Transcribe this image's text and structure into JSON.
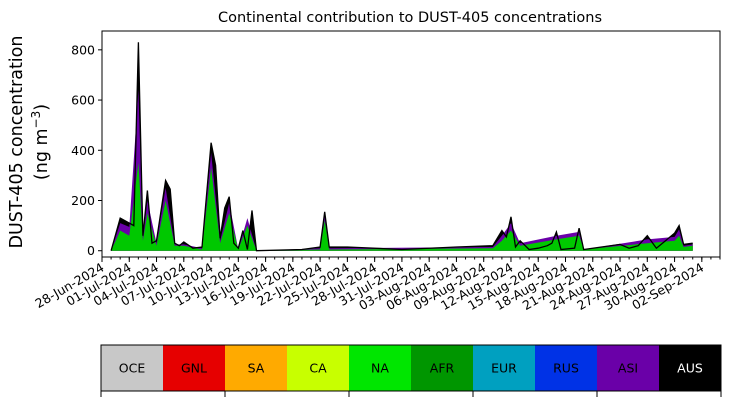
{
  "chart_data": {
    "type": "area",
    "title": "Continental contribution to DUST-405 concentrations",
    "ylabel_line1": "DUST-405 concentration",
    "ylabel_line2_prefix": "(ng m",
    "ylabel_line2_sup": "−3",
    "ylabel_line2_suffix": ")",
    "xlabel": "",
    "ylim": [
      -25,
      875
    ],
    "yticks": [
      0,
      200,
      400,
      600,
      800
    ],
    "x_start": "2024-06-28",
    "x_end": "2024-09-04",
    "xticks": [
      "28-Jun-2024",
      "01-Jul-2024",
      "04-Jul-2024",
      "07-Jul-2024",
      "10-Jul-2024",
      "13-Jul-2024",
      "16-Jul-2024",
      "19-Jul-2024",
      "22-Jul-2024",
      "25-Jul-2024",
      "28-Jul-2024",
      "31-Jul-2024",
      "03-Aug-2024",
      "06-Aug-2024",
      "09-Aug-2024",
      "12-Aug-2024",
      "15-Aug-2024",
      "18-Aug-2024",
      "21-Aug-2024",
      "24-Aug-2024",
      "27-Aug-2024",
      "30-Aug-2024",
      "02-Sep-2024"
    ],
    "grid": false,
    "series_colors": {
      "total": "#000000",
      "asia": "#6a00a8",
      "africa": "#00c800"
    },
    "total_series": [
      [
        "2024-06-29",
        0
      ],
      [
        "2024-06-30",
        130
      ],
      [
        "2024-07-01",
        110
      ],
      [
        "2024-07-01T12",
        100
      ],
      [
        "2024-07-02",
        830
      ],
      [
        "2024-07-02T12",
        60
      ],
      [
        "2024-07-03",
        240
      ],
      [
        "2024-07-03T12",
        30
      ],
      [
        "2024-07-04",
        40
      ],
      [
        "2024-07-05",
        280
      ],
      [
        "2024-07-05T12",
        245
      ],
      [
        "2024-07-06",
        30
      ],
      [
        "2024-07-06T12",
        20
      ],
      [
        "2024-07-07",
        35
      ],
      [
        "2024-07-08",
        10
      ],
      [
        "2024-07-09",
        15
      ],
      [
        "2024-07-10",
        430
      ],
      [
        "2024-07-10T12",
        340
      ],
      [
        "2024-07-11",
        50
      ],
      [
        "2024-07-11T12",
        170
      ],
      [
        "2024-07-12",
        215
      ],
      [
        "2024-07-12T12",
        30
      ],
      [
        "2024-07-13",
        10
      ],
      [
        "2024-07-13T12",
        80
      ],
      [
        "2024-07-14",
        5
      ],
      [
        "2024-07-14T12",
        160
      ],
      [
        "2024-07-15",
        0
      ],
      [
        "2024-07-20",
        5
      ],
      [
        "2024-07-22",
        15
      ],
      [
        "2024-07-22T12",
        155
      ],
      [
        "2024-07-23",
        15
      ],
      [
        "2024-07-25",
        15
      ],
      [
        "2024-07-31",
        5
      ],
      [
        "2024-08-06",
        15
      ],
      [
        "2024-08-10",
        20
      ],
      [
        "2024-08-11",
        80
      ],
      [
        "2024-08-11T12",
        55
      ],
      [
        "2024-08-12",
        135
      ],
      [
        "2024-08-12T12",
        15
      ],
      [
        "2024-08-13",
        40
      ],
      [
        "2024-08-14",
        5
      ],
      [
        "2024-08-15",
        10
      ],
      [
        "2024-08-16",
        20
      ],
      [
        "2024-08-16T12",
        30
      ],
      [
        "2024-08-17",
        75
      ],
      [
        "2024-08-17T12",
        5
      ],
      [
        "2024-08-19",
        10
      ],
      [
        "2024-08-19T12",
        90
      ],
      [
        "2024-08-20",
        5
      ],
      [
        "2024-08-24",
        25
      ],
      [
        "2024-08-25",
        10
      ],
      [
        "2024-08-26",
        20
      ],
      [
        "2024-08-27",
        60
      ],
      [
        "2024-08-28",
        10
      ],
      [
        "2024-08-29",
        40
      ],
      [
        "2024-08-30",
        70
      ],
      [
        "2024-08-30T12",
        100
      ],
      [
        "2024-08-31",
        25
      ],
      [
        "2024-09-01",
        30
      ]
    ],
    "asia_series": [
      [
        "2024-06-29",
        0
      ],
      [
        "2024-06-30",
        110
      ],
      [
        "2024-07-01",
        95
      ],
      [
        "2024-07-02",
        640
      ],
      [
        "2024-07-02T12",
        50
      ],
      [
        "2024-07-03",
        200
      ],
      [
        "2024-07-04",
        30
      ],
      [
        "2024-07-05",
        250
      ],
      [
        "2024-07-06",
        25
      ],
      [
        "2024-07-07",
        25
      ],
      [
        "2024-07-09",
        10
      ],
      [
        "2024-07-10",
        390
      ],
      [
        "2024-07-11",
        40
      ],
      [
        "2024-07-12",
        190
      ],
      [
        "2024-07-13",
        5
      ],
      [
        "2024-07-14",
        130
      ],
      [
        "2024-07-15",
        0
      ],
      [
        "2024-07-22",
        10
      ],
      [
        "2024-07-22T12",
        140
      ],
      [
        "2024-07-23",
        10
      ],
      [
        "2024-08-10",
        15
      ],
      [
        "2024-08-11",
        60
      ],
      [
        "2024-08-12",
        110
      ],
      [
        "2024-08-13",
        30
      ],
      [
        "2024-08-17",
        60
      ],
      [
        "2024-08-19T12",
        75
      ],
      [
        "2024-08-20",
        5
      ],
      [
        "2024-08-27",
        45
      ],
      [
        "2024-08-30",
        55
      ],
      [
        "2024-08-30T12",
        85
      ],
      [
        "2024-08-31",
        20
      ],
      [
        "2024-09-01",
        25
      ]
    ],
    "africa_series": [
      [
        "2024-06-29",
        0
      ],
      [
        "2024-06-30",
        80
      ],
      [
        "2024-07-01",
        60
      ],
      [
        "2024-07-02",
        350
      ],
      [
        "2024-07-02T12",
        40
      ],
      [
        "2024-07-03",
        150
      ],
      [
        "2024-07-04",
        20
      ],
      [
        "2024-07-05",
        200
      ],
      [
        "2024-07-06",
        20
      ],
      [
        "2024-07-07",
        20
      ],
      [
        "2024-07-09",
        5
      ],
      [
        "2024-07-10",
        330
      ],
      [
        "2024-07-11",
        30
      ],
      [
        "2024-07-12",
        150
      ],
      [
        "2024-07-13",
        5
      ],
      [
        "2024-07-14",
        100
      ],
      [
        "2024-07-15",
        0
      ],
      [
        "2024-07-22",
        5
      ],
      [
        "2024-07-22T12",
        120
      ],
      [
        "2024-07-23",
        5
      ],
      [
        "2024-08-10",
        10
      ],
      [
        "2024-08-11",
        40
      ],
      [
        "2024-08-12",
        80
      ],
      [
        "2024-08-13",
        20
      ],
      [
        "2024-08-17",
        45
      ],
      [
        "2024-08-19T12",
        60
      ],
      [
        "2024-08-20",
        5
      ],
      [
        "2024-08-27",
        30
      ],
      [
        "2024-08-30",
        40
      ],
      [
        "2024-08-30T12",
        60
      ],
      [
        "2024-08-31",
        15
      ],
      [
        "2024-09-01",
        20
      ]
    ]
  },
  "legend": {
    "items": [
      {
        "label": "OCE",
        "color": "#c8c8c8",
        "text_color": "#000000"
      },
      {
        "label": "GNL",
        "color": "#e60000",
        "text_color": "#000000"
      },
      {
        "label": "SA",
        "color": "#ffaa00",
        "text_color": "#000000"
      },
      {
        "label": "CA",
        "color": "#c8ff00",
        "text_color": "#000000"
      },
      {
        "label": "NA",
        "color": "#00e600",
        "text_color": "#000000"
      },
      {
        "label": "AFR",
        "color": "#009600",
        "text_color": "#000000"
      },
      {
        "label": "EUR",
        "color": "#00a0c0",
        "text_color": "#000000"
      },
      {
        "label": "RUS",
        "color": "#0032e6",
        "text_color": "#000000"
      },
      {
        "label": "ASI",
        "color": "#6a00a8",
        "text_color": "#000000"
      },
      {
        "label": "AUS",
        "color": "#000000",
        "text_color": "#ffffff"
      }
    ]
  }
}
